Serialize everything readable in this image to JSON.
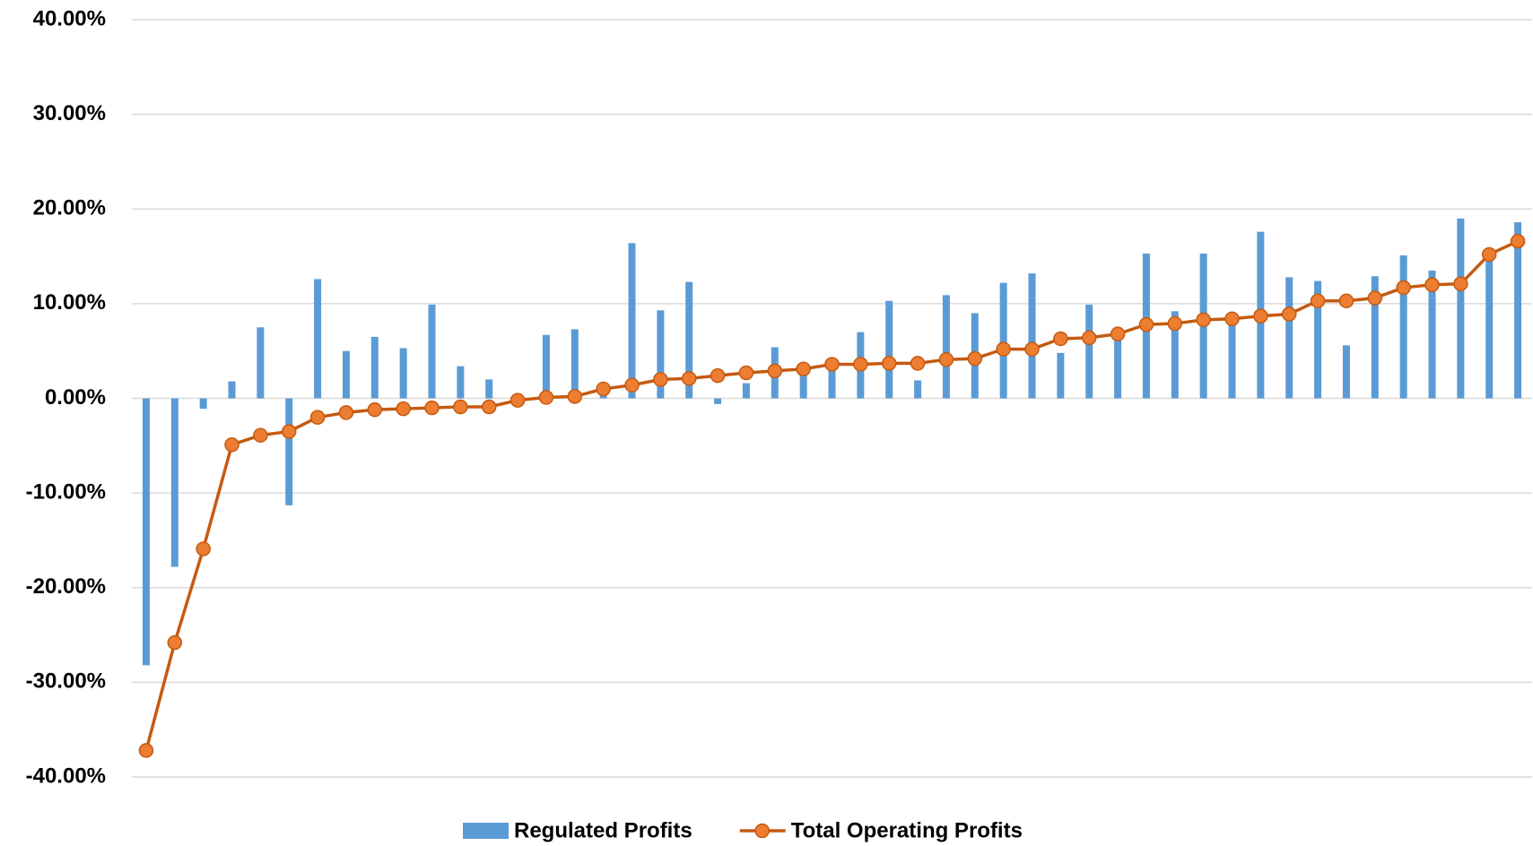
{
  "chart_data": {
    "type": "bar-line",
    "categories": [
      null,
      null,
      null,
      null,
      null,
      null,
      null,
      null,
      null,
      null,
      null,
      null,
      null,
      null,
      null,
      null,
      null,
      null,
      null,
      null,
      null,
      null,
      null,
      null,
      null,
      null,
      null,
      null,
      null,
      null,
      null,
      null,
      null,
      null,
      null,
      null,
      null,
      null,
      null,
      null,
      null,
      null,
      null,
      null,
      null,
      null,
      null,
      null,
      null
    ],
    "series": [
      {
        "name": "Regulated Profits",
        "type": "bar",
        "color": "#5b9bd5",
        "values": [
          -28.2,
          -17.8,
          -1.1,
          1.8,
          7.5,
          -11.3,
          12.6,
          5.0,
          6.5,
          5.3,
          9.9,
          3.4,
          2.0,
          0.1,
          6.7,
          7.3,
          0.5,
          16.4,
          9.3,
          12.3,
          -0.6,
          1.6,
          5.4,
          3.0,
          3.5,
          7.0,
          10.3,
          1.9,
          10.9,
          9.0,
          12.2,
          13.2,
          4.8,
          9.9,
          6.5,
          15.3,
          9.2,
          15.3,
          8.0,
          17.6,
          12.8,
          12.4,
          5.6,
          12.9,
          15.1,
          13.5,
          19.0,
          14.5,
          18.6
        ]
      },
      {
        "name": "Total Operating Profits",
        "type": "line",
        "color": "#c55a11",
        "marker_color": "#ed7d31",
        "values": [
          -37.2,
          -25.8,
          -15.9,
          -4.9,
          -3.9,
          -3.5,
          -2.0,
          -1.5,
          -1.2,
          -1.1,
          -1.0,
          -0.9,
          -0.9,
          -0.2,
          0.1,
          0.2,
          1.0,
          1.4,
          2.0,
          2.1,
          2.4,
          2.7,
          2.9,
          3.1,
          3.6,
          3.6,
          3.7,
          3.7,
          4.1,
          4.2,
          5.2,
          5.2,
          6.3,
          6.4,
          6.8,
          7.8,
          7.9,
          8.3,
          8.4,
          8.7,
          8.9,
          10.3,
          10.3,
          10.6,
          11.7,
          12.0,
          12.1,
          15.2,
          16.6
        ]
      }
    ],
    "ylim": [
      -40,
      40
    ],
    "yticks": [
      {
        "value": -40,
        "label": "-40.00%"
      },
      {
        "value": -30,
        "label": "-30.00%"
      },
      {
        "value": -20,
        "label": "-20.00%"
      },
      {
        "value": -10,
        "label": "-10.00%"
      },
      {
        "value": 0,
        "label": "0.00%"
      },
      {
        "value": 10,
        "label": "10.00%"
      },
      {
        "value": 20,
        "label": "20.00%"
      },
      {
        "value": 30,
        "label": "30.00%"
      },
      {
        "value": 40,
        "label": "40.00%"
      }
    ],
    "grid": true,
    "legend": "bottom"
  }
}
